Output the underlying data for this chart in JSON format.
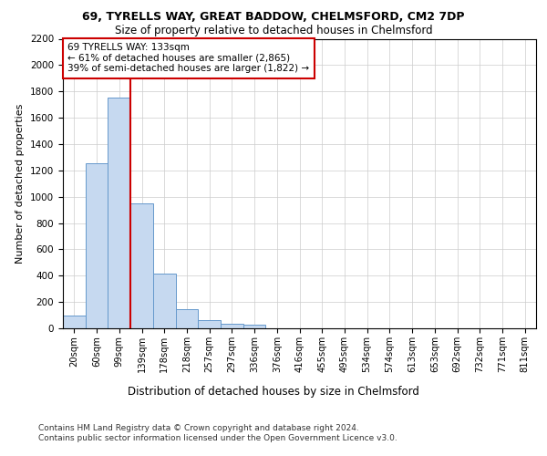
{
  "title1": "69, TYRELLS WAY, GREAT BADDOW, CHELMSFORD, CM2 7DP",
  "title2": "Size of property relative to detached houses in Chelmsford",
  "xlabel": "Distribution of detached houses by size in Chelmsford",
  "ylabel": "Number of detached properties",
  "categories": [
    "20sqm",
    "60sqm",
    "99sqm",
    "139sqm",
    "178sqm",
    "218sqm",
    "257sqm",
    "297sqm",
    "336sqm",
    "376sqm",
    "416sqm",
    "455sqm",
    "495sqm",
    "534sqm",
    "574sqm",
    "613sqm",
    "653sqm",
    "692sqm",
    "732sqm",
    "771sqm",
    "811sqm"
  ],
  "values": [
    100,
    1255,
    1750,
    950,
    415,
    145,
    65,
    35,
    25,
    0,
    0,
    0,
    0,
    0,
    0,
    0,
    0,
    0,
    0,
    0,
    0
  ],
  "bar_color": "#c6d9f0",
  "bar_edge_color": "#6699cc",
  "vline_color": "#cc0000",
  "annotation_line1": "69 TYRELLS WAY: 133sqm",
  "annotation_line2": "← 61% of detached houses are smaller (2,865)",
  "annotation_line3": "39% of semi-detached houses are larger (1,822) →",
  "box_color": "#cc0000",
  "ylim": [
    0,
    2200
  ],
  "yticks": [
    0,
    200,
    400,
    600,
    800,
    1000,
    1200,
    1400,
    1600,
    1800,
    2000,
    2200
  ],
  "footer1": "Contains HM Land Registry data © Crown copyright and database right 2024.",
  "footer2": "Contains public sector information licensed under the Open Government Licence v3.0.",
  "bg_color": "#ffffff",
  "grid_color": "#cccccc"
}
